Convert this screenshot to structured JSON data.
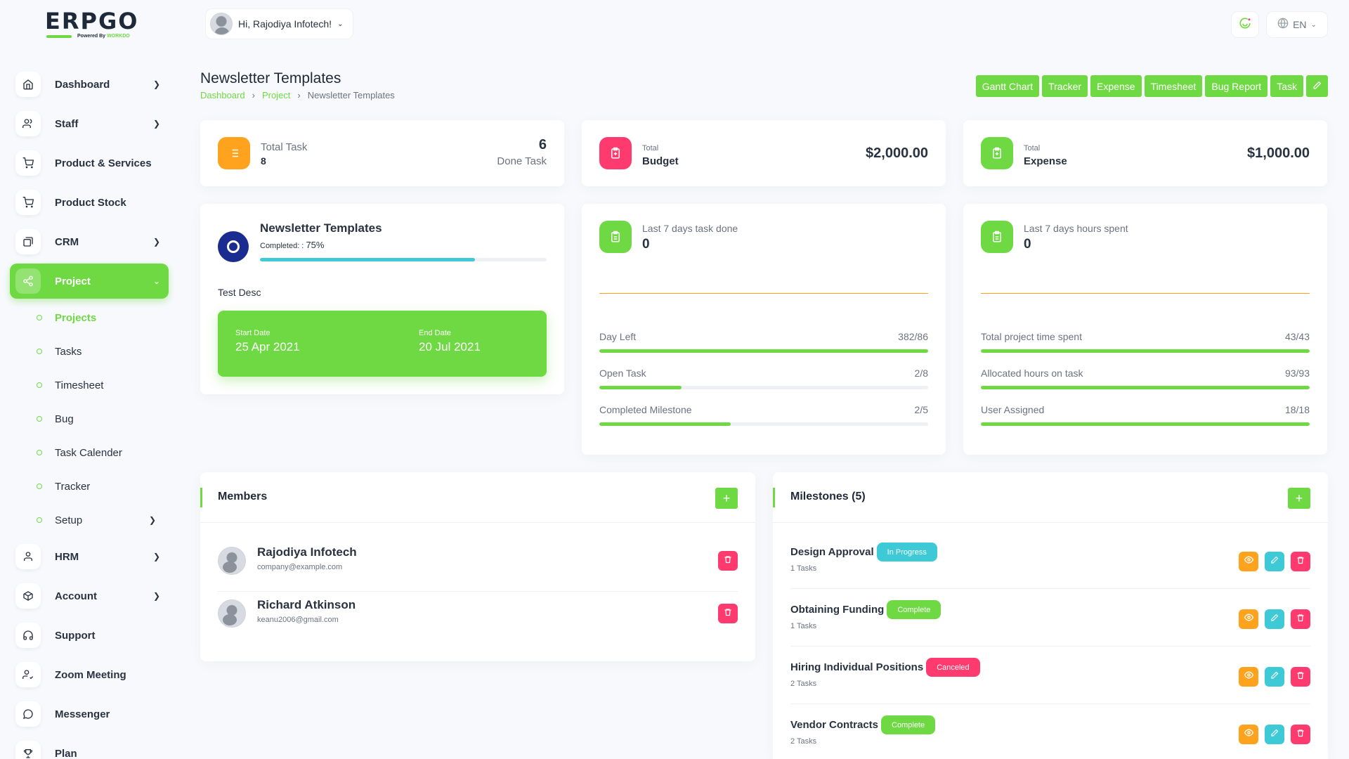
{
  "brand": {
    "logo_word_a": "ERP",
    "logo_word_b": "GO",
    "powered": "Powered By",
    "powered_brand": "WORKDO"
  },
  "header": {
    "greeting": "Hi, Rajodiya Infotech!",
    "language": "EN"
  },
  "sidebar": {
    "items": [
      {
        "label": "Dashboard",
        "icon": "home-icon",
        "chevron": true
      },
      {
        "label": "Staff",
        "icon": "users-icon",
        "chevron": true
      },
      {
        "label": "Product & Services",
        "icon": "cart-icon",
        "chevron": false
      },
      {
        "label": "Product Stock",
        "icon": "cart-icon",
        "chevron": false
      },
      {
        "label": "CRM",
        "icon": "layers-icon",
        "chevron": true
      },
      {
        "label": "Project",
        "icon": "share-icon",
        "chevron": true,
        "active": true
      }
    ],
    "project_sub": [
      {
        "label": "Projects",
        "active": true
      },
      {
        "label": "Tasks"
      },
      {
        "label": "Timesheet"
      },
      {
        "label": "Bug"
      },
      {
        "label": "Task Calender"
      },
      {
        "label": "Tracker"
      },
      {
        "label": "Setup",
        "chevron": true
      }
    ],
    "items_after": [
      {
        "label": "HRM",
        "icon": "user-icon",
        "chevron": true
      },
      {
        "label": "Account",
        "icon": "box-icon",
        "chevron": true
      },
      {
        "label": "Support",
        "icon": "headphones-icon"
      },
      {
        "label": "Zoom Meeting",
        "icon": "user-check-icon"
      },
      {
        "label": "Messenger",
        "icon": "message-icon"
      },
      {
        "label": "Plan",
        "icon": "trophy-icon"
      }
    ]
  },
  "page": {
    "title": "Newsletter Templates",
    "breadcrumb": [
      "Dashboard",
      "Project",
      "Newsletter Templates"
    ],
    "actions": [
      "Gantt Chart",
      "Tracker",
      "Expense",
      "Timesheet",
      "Bug Report",
      "Task"
    ]
  },
  "stats": {
    "total_task_label": "Total Task",
    "total_task_value": "8",
    "done_task_value": "6",
    "done_task_label": "Done Task",
    "budget_small": "Total",
    "budget_label": "Budget",
    "budget_value": "$2,000.00",
    "expense_small": "Total",
    "expense_label": "Expense",
    "expense_value": "$1,000.00"
  },
  "project_card": {
    "name": "Newsletter Templates",
    "completed_label": "Completed: :",
    "completed_value": "75%",
    "completed_fraction": 0.75,
    "description": "Test Desc",
    "start_label": "Start Date",
    "start_value": "25 Apr 2021",
    "end_label": "End Date",
    "end_value": "20 Jul 2021"
  },
  "task_card": {
    "title": "Last 7 days task done",
    "value": "0",
    "rows": [
      {
        "label": "Day Left",
        "value": "382/86",
        "fraction": 1.0
      },
      {
        "label": "Open Task",
        "value": "2/8",
        "fraction": 0.25
      },
      {
        "label": "Completed Milestone",
        "value": "2/5",
        "fraction": 0.4
      }
    ]
  },
  "hours_card": {
    "title": "Last 7 days hours spent",
    "value": "0",
    "rows": [
      {
        "label": "Total project time spent",
        "value": "43/43",
        "fraction": 1.0
      },
      {
        "label": "Allocated hours on task",
        "value": "93/93",
        "fraction": 1.0
      },
      {
        "label": "User Assigned",
        "value": "18/18",
        "fraction": 1.0
      }
    ]
  },
  "members": {
    "title": "Members",
    "list": [
      {
        "name": "Rajodiya Infotech",
        "email": "company@example.com"
      },
      {
        "name": "Richard Atkinson",
        "email": "keanu2006@gmail.com"
      }
    ]
  },
  "milestones": {
    "title": "Milestones (5)",
    "list": [
      {
        "name": "Design Approval",
        "status": "In Progress",
        "status_color": "#3ec9d6",
        "tasks": "1 Tasks"
      },
      {
        "name": "Obtaining Funding",
        "status": "Complete",
        "status_color": "#6fd943",
        "tasks": "1 Tasks"
      },
      {
        "name": "Hiring Individual Positions",
        "status": "Canceled",
        "status_color": "#ff3a6e",
        "tasks": "2 Tasks"
      },
      {
        "name": "Vendor Contracts",
        "status": "Complete",
        "status_color": "#6fd943",
        "tasks": "2 Tasks"
      }
    ]
  },
  "colors": {
    "accent": "#6fd943",
    "orange": "#ffa21d",
    "pink": "#ff3a6e",
    "cyan": "#3ec9d6",
    "navy": "#1a2c8f"
  }
}
